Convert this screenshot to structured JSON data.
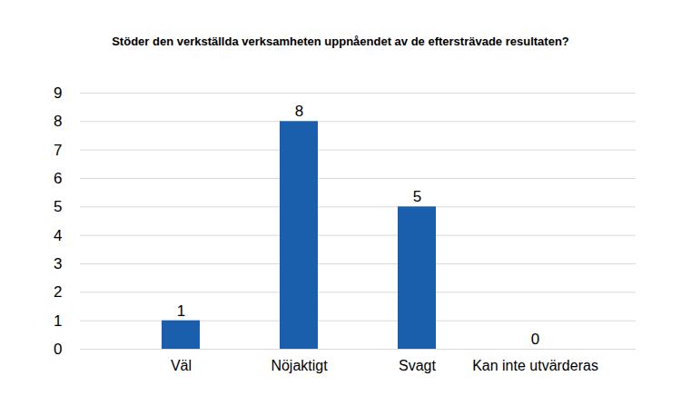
{
  "chart_data": {
    "type": "bar",
    "title": "Stöder den verkställda verksamheten uppnåendet av de eftersträvade resultaten?",
    "categories": [
      "Väl",
      "Nöjaktigt",
      "Svagt",
      "Kan inte utvärderas"
    ],
    "values": [
      1,
      8,
      5,
      0
    ],
    "color": "#1a5fac",
    "ylim": [
      0,
      9
    ],
    "yticks": [
      0,
      1,
      2,
      3,
      4,
      5,
      6,
      7,
      8,
      9
    ],
    "grid": true,
    "data_labels": true
  }
}
